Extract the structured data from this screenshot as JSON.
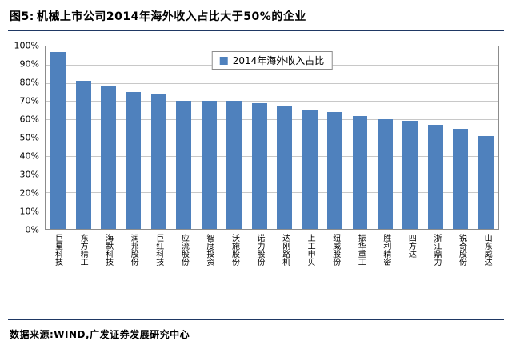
{
  "header": {
    "figure_label": "图5:",
    "title": "机械上市公司2014年海外收入占比大于50%的企业"
  },
  "footer": {
    "source": "数据来源:WIND,广发证券发展研究中心"
  },
  "colors": {
    "divider": "#1F3864",
    "bar": "#4F81BD",
    "gridline": "#c8c8c8",
    "plot_border": "#8c8c8c"
  },
  "chart_data": {
    "type": "bar",
    "legend_label": "2014年海外收入占比",
    "legend_position": "top-center",
    "categories": [
      "巨星科技",
      "东方精工",
      "海默科技",
      "润邦股份",
      "巨红科技",
      "应流股份",
      "智度投资",
      "沃施股份",
      "诺力股份",
      "达刚路机",
      "上工申贝",
      "纽威股份",
      "振华重工",
      "胜利精密",
      "四方达",
      "浙江鼎力",
      "锐奇股份",
      "山东威达"
    ],
    "values": [
      97,
      81,
      78,
      75,
      74,
      70,
      70,
      70,
      69,
      67,
      65,
      64,
      62,
      60,
      59,
      57,
      55,
      51
    ],
    "xlabel": "",
    "ylabel": "",
    "ylim": [
      0,
      100
    ],
    "ytick_step": 10,
    "ytick_suffix": "%",
    "grid": true,
    "bar_color": "#4F81BD",
    "gridline_color": "#c8c8c8"
  }
}
